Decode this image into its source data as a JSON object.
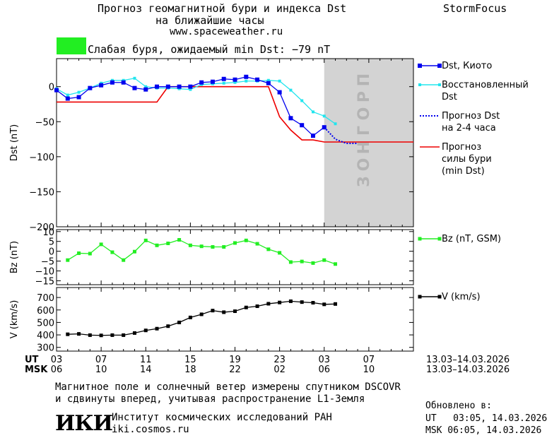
{
  "header": {
    "title_line1": "Прогноз геомагнитной бури и индекса Dst",
    "title_line2": "на ближайшие часы",
    "url": "www.spaceweather.ru",
    "brand": "StormFocus",
    "storm_label": "Слабая буря, ожидаемый min Dst: −79 nT",
    "storm_color": "#22ee22"
  },
  "colors": {
    "dst_kyoto": "#0000ee",
    "dst_restored": "#22e5ee",
    "dst_forecast": "#0000ee",
    "storm_forecast": "#ee0000",
    "bz": "#22ee22",
    "v": "#000000",
    "forecast_band": "#d3d3d3"
  },
  "forecast_band_label": "ПРОГНОЗ",
  "axes": {
    "dst_ylabel": "Dst (nT)",
    "bz_ylabel": "Bz (nT)",
    "v_ylabel": "V (km/s)",
    "ut_label": "UT",
    "msk_label": "MSK",
    "ut_ticks": [
      "03",
      "07",
      "11",
      "15",
      "19",
      "23",
      "03",
      "07"
    ],
    "msk_ticks": [
      "06",
      "10",
      "14",
      "18",
      "22",
      "02",
      "06",
      "10"
    ],
    "date_range_ut": "13.03–14.03.2026",
    "date_range_msk": "13.03–14.03.2026"
  },
  "chart_data": [
    {
      "type": "line",
      "panel": "dst",
      "ylabel": "Dst (nT)",
      "ylim": [
        -200,
        40
      ],
      "yticks": [
        0,
        -50,
        -100,
        -150,
        -200
      ],
      "xlim": [
        3,
        35
      ],
      "series": [
        {
          "name": "Dst, Киото",
          "legend_lines": [
            "Dst, Киото"
          ],
          "x": [
            3,
            4,
            5,
            6,
            7,
            8,
            9,
            10,
            11,
            12,
            13,
            14,
            15,
            16,
            17,
            18,
            19,
            20,
            21,
            22,
            23,
            24,
            25,
            26,
            27
          ],
          "y": [
            -5,
            -17,
            -15,
            -2,
            2,
            6,
            6,
            -2,
            -4,
            0,
            0,
            0,
            0,
            6,
            7,
            11,
            10,
            14,
            10,
            5,
            -8,
            -45,
            -55,
            -70,
            -58
          ]
        },
        {
          "name": "Восстановленный Dst",
          "legend_lines": [
            "Восстановленный",
            "Dst"
          ],
          "x": [
            3,
            4,
            5,
            6,
            7,
            8,
            9,
            10,
            11,
            12,
            13,
            14,
            15,
            16,
            17,
            18,
            19,
            20,
            21,
            22,
            23,
            24,
            25,
            26,
            27,
            28
          ],
          "y": [
            -3,
            -12,
            -8,
            -2,
            5,
            9,
            9,
            12,
            0,
            -2,
            -2,
            -3,
            -4,
            3,
            4,
            5,
            6,
            8,
            8,
            9,
            8,
            -5,
            -20,
            -36,
            -42,
            -53
          ]
        },
        {
          "name": "Прогноз Dst на 2-4 часа",
          "legend_lines": [
            "Прогноз Dst",
            "на 2-4 часа"
          ],
          "x": [
            27,
            28,
            29,
            30
          ],
          "y": [
            -58,
            -75,
            -81,
            -81
          ]
        },
        {
          "name": "Прогноз силы бури (min Dst)",
          "legend_lines": [
            "Прогноз",
            "силы бури",
            "(min Dst)"
          ],
          "x": [
            3,
            4,
            5,
            6,
            7,
            8,
            9,
            10,
            11,
            12,
            13,
            14,
            15,
            16,
            17,
            18,
            19,
            20,
            21,
            22,
            23,
            24,
            25,
            26,
            27,
            28,
            29,
            30,
            31,
            32,
            33,
            34,
            35
          ],
          "y": [
            -22,
            -22,
            -22,
            -22,
            -22,
            -22,
            -22,
            -22,
            -22,
            -22,
            0,
            0,
            0,
            0,
            0,
            0,
            0,
            0,
            0,
            0,
            -43,
            -62,
            -76,
            -76,
            -79,
            -79,
            -79,
            -79,
            -79,
            -79,
            -79,
            -79,
            -79
          ]
        }
      ]
    },
    {
      "type": "line",
      "panel": "bz",
      "ylabel": "Bz (nT)",
      "ylim": [
        -17,
        11
      ],
      "yticks": [
        10,
        5,
        0,
        -5,
        -10,
        -15
      ],
      "xlim": [
        3,
        35
      ],
      "series": [
        {
          "name": "Bz (nT, GSM)",
          "legend_lines": [
            "Bz (nT, GSM)"
          ],
          "x": [
            4,
            5,
            6,
            7,
            8,
            9,
            10,
            11,
            12,
            13,
            14,
            15,
            16,
            17,
            18,
            19,
            20,
            21,
            22,
            23,
            24,
            25,
            26,
            27,
            28
          ],
          "y": [
            -4.5,
            -1,
            -1.2,
            3.5,
            -0.5,
            -4.5,
            -0.2,
            5.5,
            3,
            4,
            5.8,
            3,
            2.5,
            2.2,
            2.2,
            4.2,
            5.5,
            3.8,
            1,
            -0.8,
            -5.5,
            -5.2,
            -6,
            -4.5,
            -6.5
          ]
        }
      ]
    },
    {
      "type": "line",
      "panel": "v",
      "ylabel": "V (km/s)",
      "ylim": [
        270,
        780
      ],
      "yticks": [
        700,
        600,
        500,
        400,
        300
      ],
      "xlim": [
        3,
        35
      ],
      "series": [
        {
          "name": "V (km/s)",
          "legend_lines": [
            "V (km/s)"
          ],
          "x": [
            4,
            5,
            6,
            7,
            8,
            9,
            10,
            11,
            12,
            13,
            14,
            15,
            16,
            17,
            18,
            19,
            20,
            21,
            22,
            23,
            24,
            25,
            26,
            27,
            28
          ],
          "y": [
            405,
            408,
            398,
            396,
            398,
            398,
            415,
            436,
            450,
            470,
            500,
            540,
            565,
            595,
            582,
            590,
            620,
            630,
            650,
            660,
            670,
            663,
            658,
            645,
            648
          ]
        }
      ]
    }
  ],
  "footer": {
    "line1": "Магнитное поле и солнечный ветер измерены спутником DSCOVR",
    "line2": "и сдвинуты вперед, учитывая распространение L1-Земля",
    "logo_text": "ИКИ",
    "institute": "Институт космических исследований РАН",
    "institute_url": "iki.cosmos.ru",
    "updated_label": "Обновлено в:",
    "updated_ut": "UT   03:05, 14.03.2026",
    "updated_msk": "MSK 06:05, 14.03.2026"
  }
}
